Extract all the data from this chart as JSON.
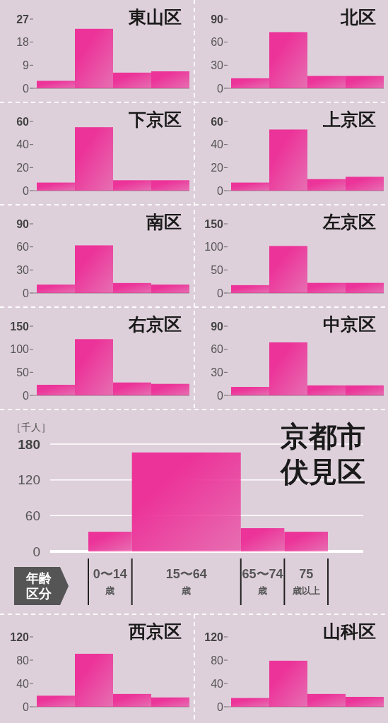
{
  "chart_data": [
    {
      "type": "bar",
      "title": "東山区",
      "categories": [
        null,
        null,
        null,
        null
      ],
      "values": [
        2.9,
        23.2,
        6.1,
        6.6
      ],
      "color": "#ec3399",
      "ylim": [
        0,
        27
      ],
      "yticks": [
        0,
        9,
        18,
        27
      ],
      "tick_labels": "y"
    },
    {
      "type": "bar",
      "title": "北区",
      "categories": [
        null,
        null,
        null,
        null
      ],
      "values": [
        13,
        73,
        16,
        16
      ],
      "color": "#ec3399",
      "ylim": [
        0,
        90
      ],
      "yticks": [
        0,
        30,
        60,
        90
      ],
      "tick_labels": "y"
    },
    {
      "type": "bar",
      "title": "下京区",
      "categories": [
        null,
        null,
        null,
        null
      ],
      "values": [
        7,
        55,
        9,
        9
      ],
      "color": "#ec3399",
      "ylim": [
        0,
        60
      ],
      "yticks": [
        0,
        20,
        40,
        60
      ],
      "tick_labels": "y"
    },
    {
      "type": "bar",
      "title": "上京区",
      "categories": [
        null,
        null,
        null,
        null
      ],
      "values": [
        7,
        53,
        10,
        12
      ],
      "color": "#ec3399",
      "ylim": [
        0,
        60
      ],
      "yticks": [
        0,
        20,
        40,
        60
      ],
      "tick_labels": "y"
    },
    {
      "type": "bar",
      "title": "南区",
      "categories": [
        null,
        null,
        null,
        null
      ],
      "values": [
        11,
        62,
        13,
        11
      ],
      "color": "#ec3399",
      "ylim": [
        0,
        90
      ],
      "yticks": [
        0,
        30,
        60,
        90
      ],
      "tick_labels": "y"
    },
    {
      "type": "bar",
      "title": "左京区",
      "categories": [
        null,
        null,
        null,
        null
      ],
      "values": [
        17,
        102,
        22,
        22
      ],
      "color": "#ec3399",
      "ylim": [
        0,
        150
      ],
      "yticks": [
        0,
        50,
        100,
        150
      ],
      "tick_labels": "y"
    },
    {
      "type": "bar",
      "title": "右京区",
      "categories": [
        null,
        null,
        null,
        null
      ],
      "values": [
        23,
        122,
        28,
        25
      ],
      "color": "#ec3399",
      "ylim": [
        0,
        150
      ],
      "yticks": [
        0,
        50,
        100,
        150
      ],
      "tick_labels": "y"
    },
    {
      "type": "bar",
      "title": "中京区",
      "categories": [
        null,
        null,
        null,
        null
      ],
      "values": [
        11,
        69,
        13,
        13
      ],
      "color": "#ec3399",
      "ylim": [
        0,
        90
      ],
      "yticks": [
        0,
        30,
        60,
        90
      ],
      "tick_labels": "y"
    },
    {
      "type": "bar",
      "title": "京都市伏見区",
      "ylabel": "［千人］",
      "xlabel": "年齢区分",
      "categories": [
        "0〜14$_{歳}$",
        "15〜64$_{歳}$",
        "65〜74$_{歳}$",
        "75$_{歳以上}$"
      ],
      "values": [
        33,
        166,
        39,
        33
      ],
      "color": "#ec3399",
      "ylim": [
        0,
        180
      ],
      "yticks": [
        0,
        60,
        120,
        180
      ],
      "grid": "y"
    },
    {
      "type": "bar",
      "title": "西京区",
      "categories": [
        null,
        null,
        null,
        null
      ],
      "values": [
        19,
        91,
        22,
        16
      ],
      "color": "#ec3399",
      "ylim": [
        0,
        120
      ],
      "yticks": [
        0,
        40,
        80,
        120
      ],
      "tick_labels": "y"
    },
    {
      "type": "bar",
      "title": "山科区",
      "categories": [
        null,
        null,
        null,
        null
      ],
      "values": [
        15,
        79,
        22,
        17
      ],
      "color": "#ec3399",
      "ylim": [
        0,
        120
      ],
      "yticks": [
        0,
        40,
        80,
        120
      ],
      "tick_labels": "y"
    }
  ]
}
